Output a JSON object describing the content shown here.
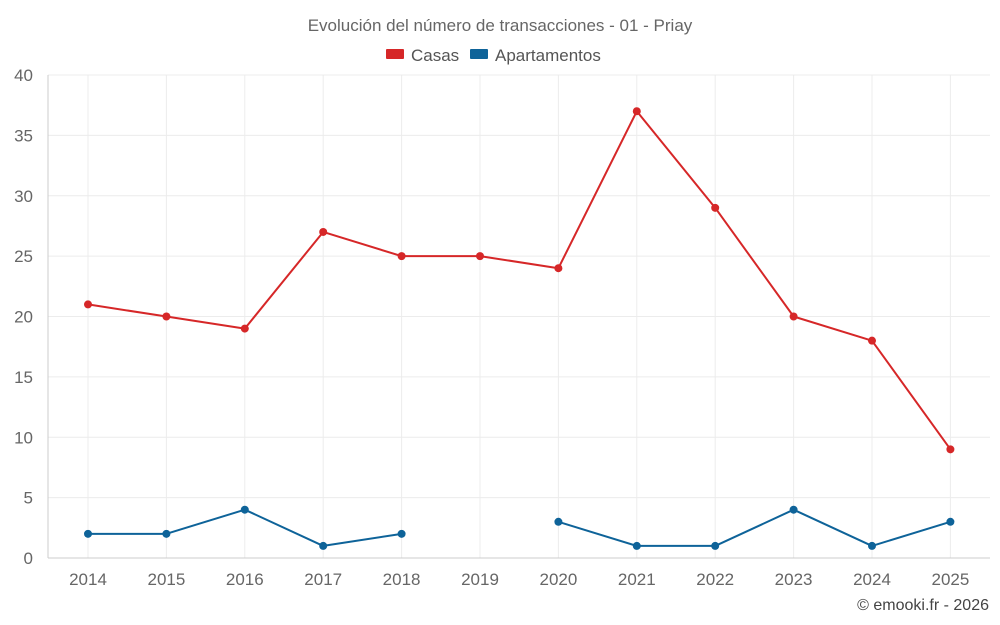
{
  "chart_data": {
    "type": "line",
    "title": "Evolución del número de transacciones - 01 - Priay",
    "categories": [
      "2014",
      "2015",
      "2016",
      "2017",
      "2018",
      "2019",
      "2020",
      "2021",
      "2022",
      "2023",
      "2024",
      "2025"
    ],
    "series": [
      {
        "name": "Casas",
        "color": "#d62728",
        "values": [
          21,
          20,
          19,
          27,
          25,
          25,
          24,
          37,
          29,
          20,
          18,
          9
        ]
      },
      {
        "name": "Apartamentos",
        "color": "#0e6399",
        "values": [
          2,
          2,
          4,
          1,
          2,
          null,
          3,
          1,
          1,
          4,
          1,
          3
        ]
      }
    ],
    "ylim": [
      0,
      40
    ],
    "yticks": [
      "0",
      "5",
      "10",
      "15",
      "20",
      "25",
      "30",
      "35",
      "40"
    ],
    "grid": true,
    "legend": "top-center"
  },
  "footer": "© emooki.fr - 2026"
}
